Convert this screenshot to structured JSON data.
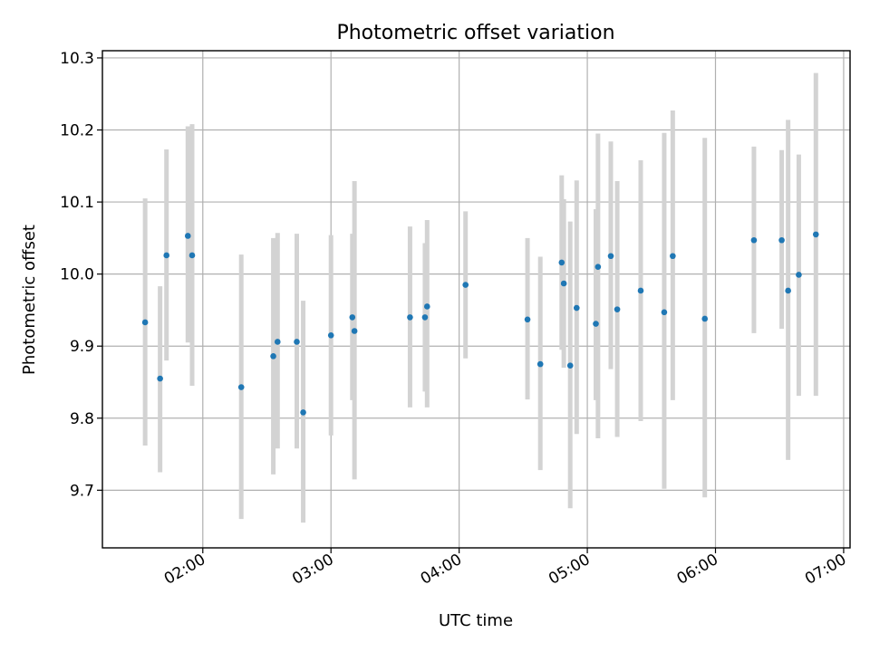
{
  "chart_data": {
    "type": "scatter",
    "title": "Photometric offset variation",
    "xlabel": "UTC time",
    "ylabel": "Photometric offset",
    "x_ticks": [
      "02:00",
      "03:00",
      "04:00",
      "05:00",
      "06:00",
      "07:00"
    ],
    "y_ticks": [
      "9.7",
      "9.8",
      "9.9",
      "10.0",
      "10.1",
      "10.2",
      "10.3"
    ],
    "xlim": [
      "01:13",
      "07:03"
    ],
    "ylim": [
      9.62,
      10.31
    ],
    "grid": true,
    "colors": {
      "points": "#1f77b4",
      "errorbars": "#d3d3d3"
    },
    "points": [
      {
        "x": "01:33",
        "y": 9.933,
        "lo": 9.762,
        "hi": 10.105
      },
      {
        "x": "01:40",
        "y": 9.855,
        "lo": 9.725,
        "hi": 9.983
      },
      {
        "x": "01:43",
        "y": 10.026,
        "lo": 9.88,
        "hi": 10.173
      },
      {
        "x": "01:53",
        "y": 10.053,
        "lo": 9.905,
        "hi": 10.205
      },
      {
        "x": "01:55",
        "y": 10.026,
        "lo": 9.845,
        "hi": 10.208
      },
      {
        "x": "02:18",
        "y": 9.843,
        "lo": 9.66,
        "hi": 10.027
      },
      {
        "x": "02:33",
        "y": 9.886,
        "lo": 9.722,
        "hi": 10.05
      },
      {
        "x": "02:35",
        "y": 9.906,
        "lo": 9.758,
        "hi": 10.057
      },
      {
        "x": "02:44",
        "y": 9.906,
        "lo": 9.758,
        "hi": 10.056
      },
      {
        "x": "02:47",
        "y": 9.808,
        "lo": 9.655,
        "hi": 9.963
      },
      {
        "x": "03:00",
        "y": 9.915,
        "lo": 9.776,
        "hi": 10.054
      },
      {
        "x": "03:10",
        "y": 9.94,
        "lo": 9.825,
        "hi": 10.056
      },
      {
        "x": "03:11",
        "y": 9.921,
        "lo": 9.715,
        "hi": 10.129
      },
      {
        "x": "03:37",
        "y": 9.94,
        "lo": 9.815,
        "hi": 10.066
      },
      {
        "x": "03:44",
        "y": 9.94,
        "lo": 9.837,
        "hi": 10.043
      },
      {
        "x": "03:45",
        "y": 9.955,
        "lo": 9.815,
        "hi": 10.075
      },
      {
        "x": "04:03",
        "y": 9.985,
        "lo": 9.883,
        "hi": 10.087
      },
      {
        "x": "04:32",
        "y": 9.937,
        "lo": 9.826,
        "hi": 10.05
      },
      {
        "x": "04:38",
        "y": 9.875,
        "lo": 9.728,
        "hi": 10.024
      },
      {
        "x": "04:48",
        "y": 10.016,
        "lo": 9.895,
        "hi": 10.137
      },
      {
        "x": "04:49",
        "y": 9.987,
        "lo": 9.87,
        "hi": 10.104
      },
      {
        "x": "04:52",
        "y": 9.873,
        "lo": 9.675,
        "hi": 10.073
      },
      {
        "x": "04:55",
        "y": 9.953,
        "lo": 9.778,
        "hi": 10.13
      },
      {
        "x": "05:04",
        "y": 9.931,
        "lo": 9.825,
        "hi": 10.09
      },
      {
        "x": "05:05",
        "y": 10.01,
        "lo": 9.772,
        "hi": 10.195
      },
      {
        "x": "05:11",
        "y": 10.025,
        "lo": 9.868,
        "hi": 10.184
      },
      {
        "x": "05:14",
        "y": 9.951,
        "lo": 9.774,
        "hi": 10.129
      },
      {
        "x": "05:25",
        "y": 9.977,
        "lo": 9.796,
        "hi": 10.158
      },
      {
        "x": "05:36",
        "y": 9.947,
        "lo": 9.702,
        "hi": 10.196
      },
      {
        "x": "05:40",
        "y": 10.025,
        "lo": 9.825,
        "hi": 10.227
      },
      {
        "x": "05:55",
        "y": 9.938,
        "lo": 9.69,
        "hi": 10.189
      },
      {
        "x": "06:18",
        "y": 10.047,
        "lo": 9.918,
        "hi": 10.177
      },
      {
        "x": "06:31",
        "y": 10.047,
        "lo": 9.924,
        "hi": 10.172
      },
      {
        "x": "06:34",
        "y": 9.977,
        "lo": 9.742,
        "hi": 10.214
      },
      {
        "x": "06:39",
        "y": 9.999,
        "lo": 9.831,
        "hi": 10.166
      },
      {
        "x": "06:47",
        "y": 10.055,
        "lo": 9.831,
        "hi": 10.279
      }
    ]
  }
}
